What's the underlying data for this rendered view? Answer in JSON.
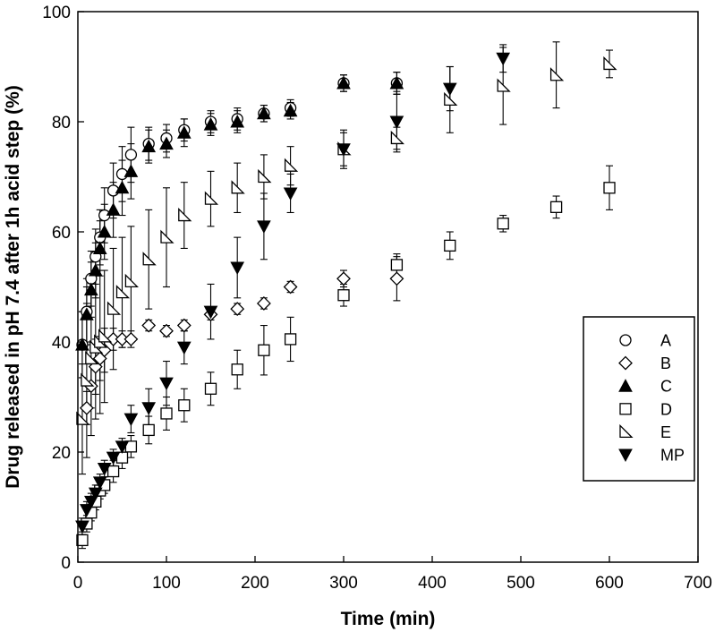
{
  "chart_data": {
    "type": "scatter",
    "title": "",
    "xlabel": "Time (min)",
    "ylabel": "Drug released in pH 7.4 after 1h acid step (%)",
    "xlim": [
      0,
      700
    ],
    "ylim": [
      0,
      100
    ],
    "xticks": [
      0,
      100,
      200,
      300,
      400,
      500,
      600,
      700
    ],
    "yticks": [
      0,
      20,
      40,
      60,
      80,
      100
    ],
    "grid": false,
    "legend_position": "right",
    "series": [
      {
        "name": "A",
        "marker": "circle-open",
        "x": [
          5,
          10,
          15,
          20,
          25,
          30,
          40,
          50,
          60,
          80,
          100,
          120,
          150,
          180,
          210,
          240,
          300,
          360
        ],
        "y": [
          39.5,
          45.5,
          51.5,
          55.5,
          59,
          63,
          67.5,
          70.5,
          74,
          76,
          77,
          78.5,
          80,
          80.5,
          81.5,
          82.5,
          87,
          87
        ],
        "err": [
          6,
          6,
          5,
          5,
          5,
          5,
          5,
          5,
          5,
          3,
          2.5,
          2,
          2,
          2,
          1.5,
          1.5,
          1.5,
          2
        ]
      },
      {
        "name": "B",
        "marker": "diamond-open",
        "x": [
          10,
          15,
          20,
          25,
          30,
          40,
          50,
          60,
          80,
          100,
          120,
          150,
          180,
          210,
          240,
          300,
          360
        ],
        "y": [
          28,
          32,
          35.5,
          37,
          38.5,
          40.5,
          40.5,
          40.5,
          43,
          42,
          43,
          45,
          46,
          47,
          50,
          51.5,
          51.5
        ],
        "err": [
          3,
          4,
          5,
          4,
          4,
          2,
          1.5,
          1.5,
          1,
          1,
          1,
          1,
          1,
          1,
          1,
          1.5,
          4
        ]
      },
      {
        "name": "C",
        "marker": "triangle-filled",
        "x": [
          5,
          10,
          15,
          20,
          25,
          30,
          40,
          50,
          60,
          80,
          100,
          120,
          150,
          180,
          210,
          240,
          300,
          360
        ],
        "y": [
          39.5,
          45,
          49.5,
          53,
          57,
          60,
          64,
          68,
          71,
          75.5,
          76,
          78,
          79.5,
          80,
          81.5,
          82,
          87,
          87
        ],
        "err": [
          6,
          5,
          5,
          5,
          5,
          5,
          5,
          5,
          5,
          3,
          2.5,
          2.5,
          2,
          2,
          1.5,
          1.5,
          1.5,
          2
        ]
      },
      {
        "name": "D",
        "marker": "square-open",
        "x": [
          5,
          10,
          15,
          20,
          25,
          30,
          40,
          50,
          60,
          80,
          100,
          120,
          150,
          180,
          210,
          240,
          300,
          360,
          420,
          480,
          540,
          600
        ],
        "y": [
          4,
          7,
          9,
          11,
          13,
          14,
          16.5,
          19,
          21,
          24,
          27,
          28.5,
          31.5,
          35,
          38.5,
          40.5,
          48.5,
          54,
          57.5,
          61.5,
          64.5,
          68
        ],
        "err": [
          1.5,
          1.5,
          1.5,
          1.5,
          1.5,
          1.5,
          2,
          2,
          2,
          2.5,
          3,
          3,
          3,
          3.5,
          4.5,
          4,
          2,
          2,
          2.5,
          1.5,
          2,
          4
        ]
      },
      {
        "name": "E",
        "marker": "right-triangle-open",
        "x": [
          5,
          10,
          15,
          20,
          25,
          30,
          40,
          50,
          60,
          80,
          100,
          120,
          150,
          180,
          210,
          240,
          300,
          360,
          420,
          480,
          540,
          600
        ],
        "y": [
          26,
          33,
          37,
          39,
          40,
          41,
          46,
          49,
          51,
          55,
          59,
          63,
          66,
          68,
          70,
          72,
          75,
          77,
          84,
          86.5,
          88.5,
          90.5
        ],
        "err": [
          10,
          14,
          14,
          13,
          13,
          12,
          11,
          10,
          10,
          9,
          9,
          6,
          5,
          4.5,
          4,
          3.5,
          3,
          2,
          6,
          7,
          6,
          2.5
        ]
      },
      {
        "name": "MP",
        "marker": "triangle-down-filled",
        "x": [
          5,
          10,
          15,
          20,
          25,
          30,
          40,
          50,
          60,
          80,
          100,
          120,
          150,
          180,
          210,
          240,
          300,
          360,
          420,
          480
        ],
        "y": [
          6.5,
          9.5,
          11,
          12.5,
          14.5,
          17,
          19,
          21,
          26,
          28,
          32.5,
          39,
          45.5,
          53.5,
          61,
          67,
          75,
          80,
          86,
          91.5
        ],
        "err": [
          1.5,
          1.5,
          1.5,
          1.5,
          1.5,
          1.5,
          1.5,
          1.5,
          2.5,
          3.5,
          4,
          3,
          5,
          5.5,
          6,
          3.5,
          3.5,
          5.5,
          4,
          2.5
        ]
      }
    ]
  }
}
